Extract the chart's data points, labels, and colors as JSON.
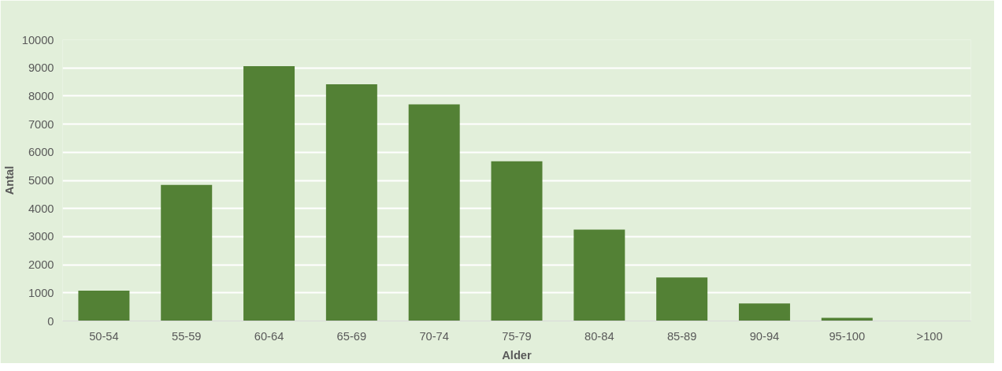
{
  "chart_data": {
    "type": "bar",
    "xlabel": "Alder",
    "ylabel": "Antal",
    "categories": [
      "50-54",
      "55-59",
      "60-64",
      "65-69",
      "70-74",
      "75-79",
      "80-84",
      "85-89",
      "90-94",
      "95-100",
      ">100"
    ],
    "values": [
      1080,
      4840,
      9060,
      8420,
      7700,
      5680,
      3250,
      1550,
      620,
      110,
      0
    ],
    "color": "#538135",
    "ylim": [
      0,
      10000
    ],
    "yticks": [
      0,
      1000,
      2000,
      3000,
      4000,
      5000,
      6000,
      7000,
      8000,
      9000,
      10000
    ],
    "grid": "y"
  }
}
